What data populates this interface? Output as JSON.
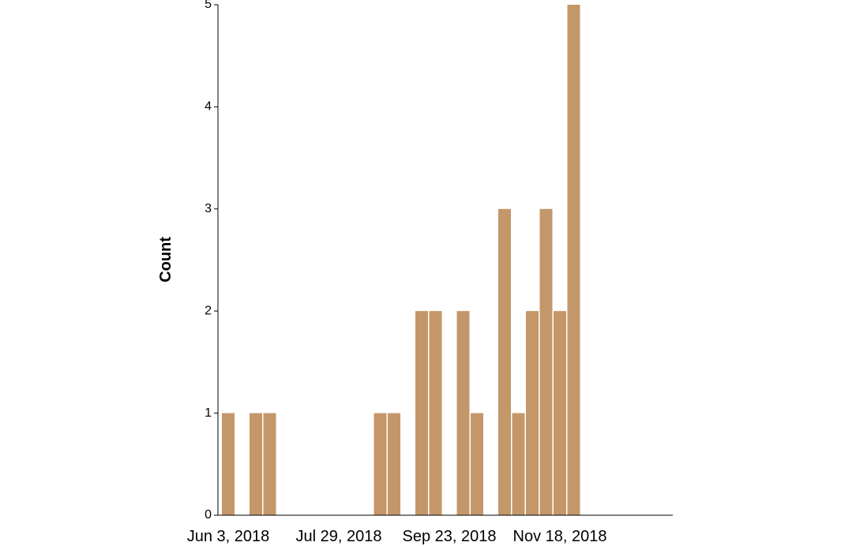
{
  "chart_data": {
    "type": "bar",
    "title": "",
    "xlabel": "",
    "ylabel": "Count",
    "ylim": [
      0,
      5
    ],
    "y_ticks": [
      "0",
      "1",
      "2",
      "3",
      "4",
      "5"
    ],
    "x_range": [
      "2018-06-01",
      "2018-12-01"
    ],
    "x_ticks": [
      {
        "date": "2018-06-03",
        "label": "Jun 3, 2018"
      },
      {
        "date": "2018-07-29",
        "label": "Jul 29, 2018"
      },
      {
        "date": "2018-09-23",
        "label": "Sep 23, 2018"
      },
      {
        "date": "2018-11-18",
        "label": "Nov 18, 2018"
      }
    ],
    "bin": "week",
    "x": [
      "2018-06-03",
      "2018-06-17",
      "2018-06-24",
      "2018-08-19",
      "2018-08-26",
      "2018-09-09",
      "2018-09-16",
      "2018-09-30",
      "2018-10-07",
      "2018-10-21",
      "2018-10-28",
      "2018-11-04",
      "2018-11-11",
      "2018-11-18",
      "2018-11-25"
    ],
    "values": [
      1,
      1,
      1,
      1,
      1,
      2,
      2,
      2,
      1,
      3,
      1,
      2,
      3,
      2,
      5
    ],
    "bar_color": "#c4976a",
    "grid": false,
    "legend": "none"
  }
}
